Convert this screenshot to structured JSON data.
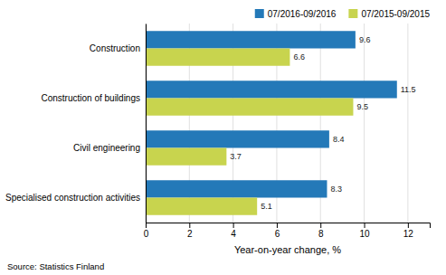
{
  "chart_data": {
    "type": "bar",
    "orientation": "horizontal",
    "categories": [
      "Construction",
      "Construction of buildings",
      "Civil engineering",
      "Specialised construction activities"
    ],
    "series": [
      {
        "name": "07/2016-09/2016",
        "color": "#2479B8",
        "values": [
          9.6,
          11.5,
          8.4,
          8.3
        ]
      },
      {
        "name": "07/2015-09/2015",
        "color": "#C8D44E",
        "values": [
          6.6,
          9.5,
          3.7,
          5.1
        ]
      }
    ],
    "xlabel": "Year-on-year change, %",
    "xlim": [
      0,
      13
    ],
    "xticks": [
      0,
      2,
      4,
      6,
      8,
      10,
      12
    ],
    "annotations": [
      "Source: Statistics Finland"
    ],
    "grid": true,
    "legend": "top right",
    "data_labels": true
  }
}
